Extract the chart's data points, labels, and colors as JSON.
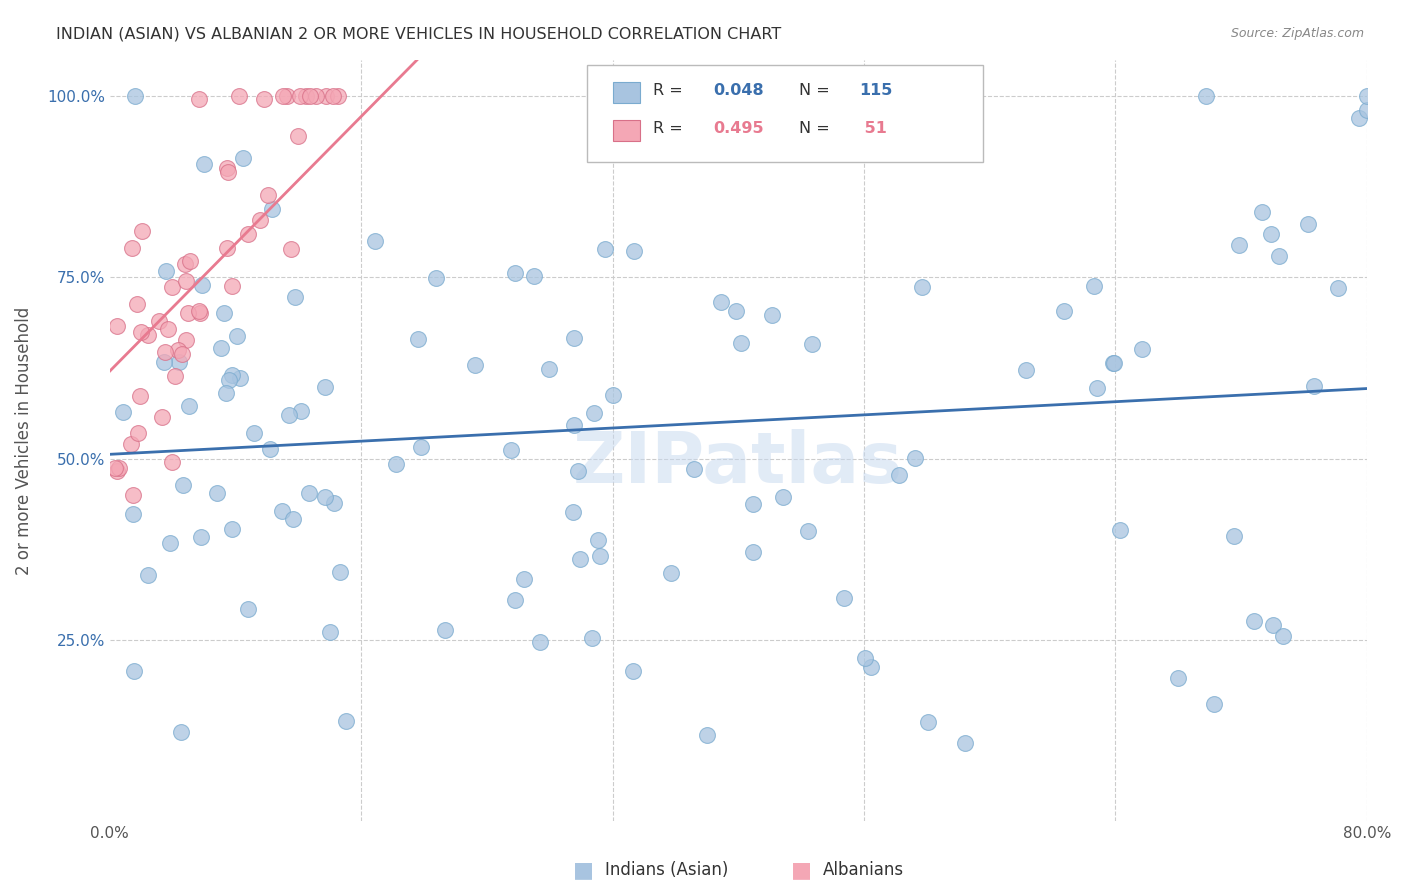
{
  "title": "INDIAN (ASIAN) VS ALBANIAN 2 OR MORE VEHICLES IN HOUSEHOLD CORRELATION CHART",
  "source": "Source: ZipAtlas.com",
  "ylabel": "2 or more Vehicles in Household",
  "indian_R": 0.048,
  "indian_N": 115,
  "albanian_R": 0.495,
  "albanian_N": 51,
  "indian_color": "#a8c4e0",
  "albanian_color": "#f4a7b5",
  "indian_line_color": "#3a6fad",
  "albanian_line_color": "#e87a90",
  "xmin": 0.0,
  "xmax": 0.8,
  "ymin": 0.0,
  "ymax": 1.05,
  "watermark": "ZIPatlas",
  "background_color": "#ffffff",
  "grid_color": "#cccccc"
}
